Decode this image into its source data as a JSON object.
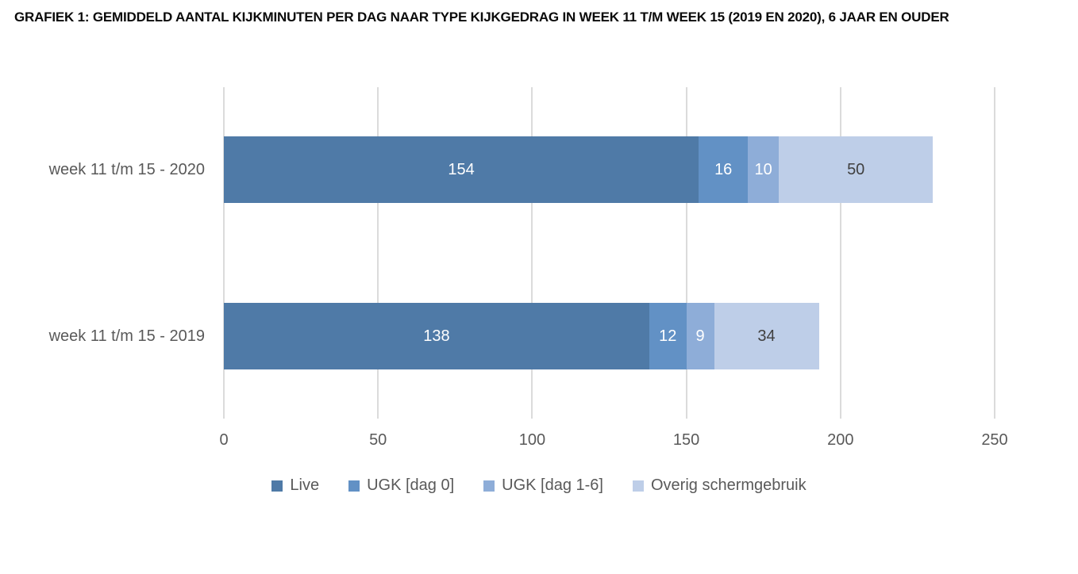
{
  "title": "GRAFIEK 1: GEMIDDELD AANTAL KIJKMINUTEN PER DAG NAAR TYPE KIJKGEDRAG IN WEEK 11 T/M WEEK 15 (2019 EN 2020), 6 JAAR EN OUDER",
  "colors": {
    "live": "#4F7AA7",
    "ugk_dag_0": "#6291C5",
    "ugk_dag_1_6": "#8EADD8",
    "overig_schermgebruik": "#BECEE8",
    "gridline": "#DBDBDB",
    "axis_text": "#595959",
    "value_label_light": "#FFFFFF",
    "value_label_dark": "#404040",
    "title_text": "#0A0A0A"
  },
  "chart_data": {
    "type": "bar",
    "orientation": "horizontal",
    "stacked": true,
    "title": "GRAFIEK 1: GEMIDDELD AANTAL KIJKMINUTEN PER DAG NAAR TYPE KIJKGEDRAG IN WEEK 11 T/M WEEK 15 (2019 EN 2020), 6 JAAR EN OUDER",
    "categories": [
      "week 11 t/m 15 - 2020",
      "week 11 t/m 15 - 2019"
    ],
    "series": [
      {
        "name": "Live",
        "values": [
          154,
          138
        ],
        "color": "#4F7AA7",
        "label_color": "#FFFFFF"
      },
      {
        "name": "UGK [dag 0]",
        "values": [
          16,
          12
        ],
        "color": "#6291C5",
        "label_color": "#FFFFFF"
      },
      {
        "name": "UGK [dag 1-6]",
        "values": [
          10,
          9
        ],
        "color": "#8EADD8",
        "label_color": "#FFFFFF"
      },
      {
        "name": "Overig schermgebruik",
        "values": [
          50,
          34
        ],
        "color": "#BECEE8",
        "label_color": "#404040"
      }
    ],
    "totals": [
      230,
      193
    ],
    "xlabel": "",
    "ylabel": "",
    "xlim": [
      0,
      250
    ],
    "xticks": [
      0,
      50,
      100,
      150,
      200,
      250
    ],
    "grid": true,
    "data_labels": true,
    "legend_position": "bottom"
  }
}
